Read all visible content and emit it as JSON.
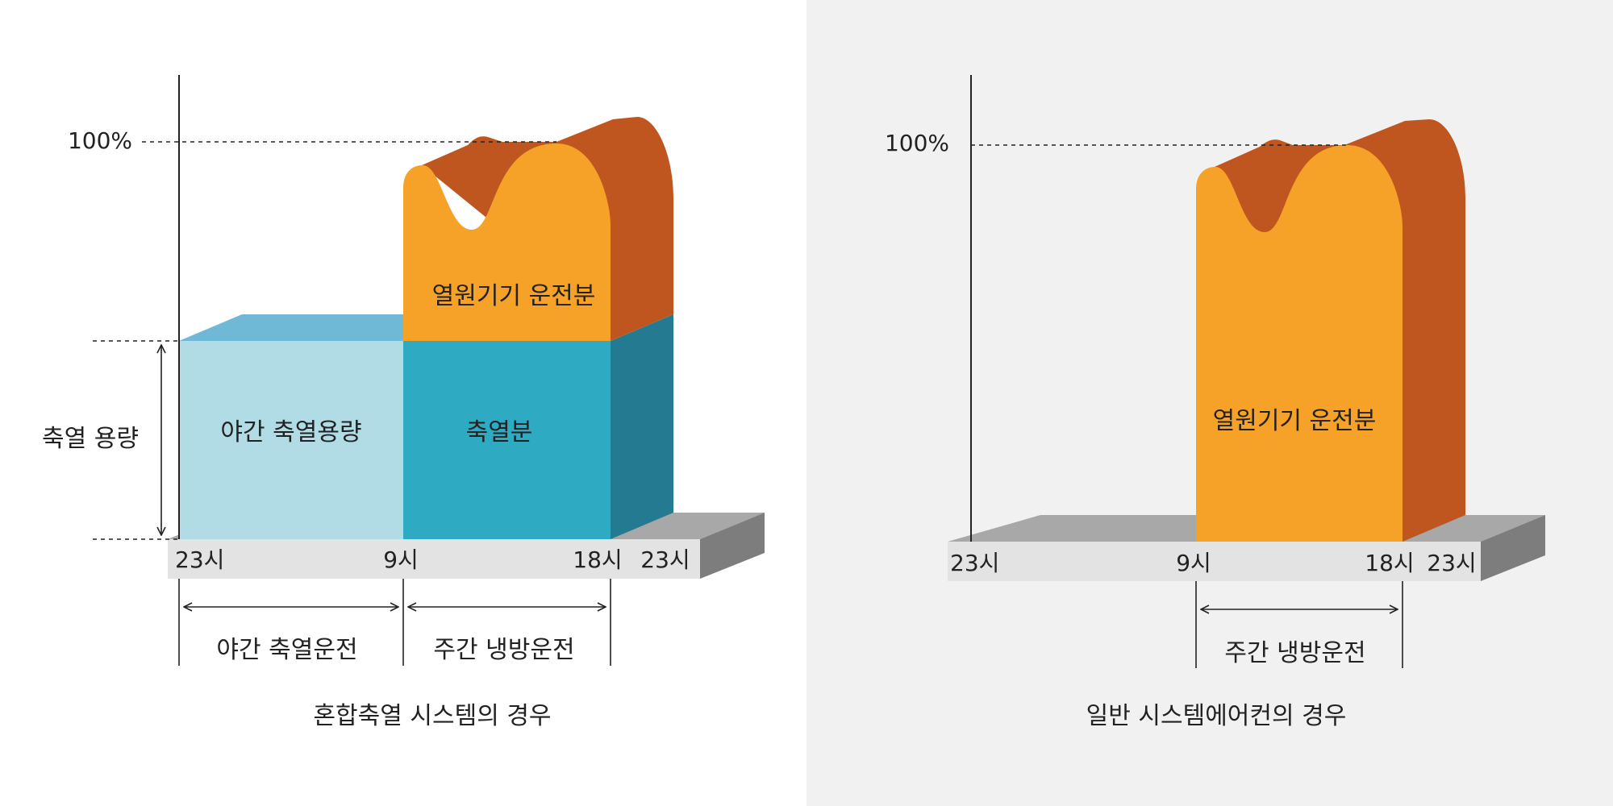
{
  "colors": {
    "night_storage_front": "#b1dce5",
    "night_storage_top": "#6fb9d6",
    "storage_front": "#2eabc3",
    "storage_side": "#247b91",
    "equipment_front": "#f6a229",
    "equipment_side": "#c0561f",
    "base_top": "#a8a8a8",
    "base_front": "#e3e3e3",
    "base_side": "#7d7d7d",
    "right_panel_bg": "#f1f1f1"
  },
  "left_panel": {
    "y_max_label": "100%",
    "capacity_label": "축열 용량",
    "block_night_label": "야간 축열용량",
    "block_storage_label": "축열분",
    "block_equipment_label": "열원기기 운전분",
    "time_ticks": [
      "23시",
      "9시",
      "18시",
      "23시"
    ],
    "span_night": "야간 축열운전",
    "span_day": "주간 냉방운전",
    "caption": "혼합축열 시스템의 경우"
  },
  "right_panel": {
    "y_max_label": "100%",
    "block_equipment_label": "열원기기 운전분",
    "time_ticks": [
      "23시",
      "9시",
      "18시",
      "23시"
    ],
    "span_day": "주간 냉방운전",
    "caption": "일반 시스템에어컨의 경우"
  }
}
